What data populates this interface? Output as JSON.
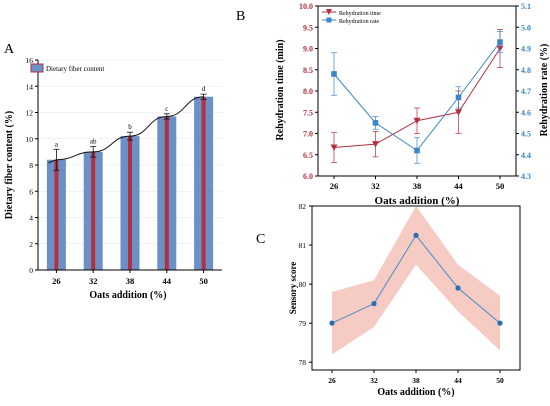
{
  "chart_data": [
    {
      "panel_label": "A",
      "type": "bar",
      "categories": [
        "26",
        "32",
        "38",
        "44",
        "50"
      ],
      "series": [
        {
          "name": "Dietary fiber content",
          "values": [
            8.4,
            9.0,
            10.2,
            11.7,
            13.2
          ],
          "errors": [
            0.8,
            0.4,
            0.3,
            0.2,
            0.2
          ]
        }
      ],
      "letters": [
        "a",
        "ab",
        "b",
        "c",
        "d"
      ],
      "fit_line": true,
      "xlabel": "Oats addition (%)",
      "ylabel": "Dietary fiber content (%)",
      "ylim": [
        0,
        16
      ],
      "yticks": [
        "0",
        "2",
        "4",
        "6",
        "8",
        "10",
        "12",
        "14",
        "16"
      ],
      "legend": "top-left",
      "colors": {
        "bar": "#6b8fc7",
        "stripe": "#b3303f"
      }
    },
    {
      "panel_label": "B",
      "type": "line",
      "x": [
        "26",
        "32",
        "38",
        "44",
        "50"
      ],
      "series": [
        {
          "name": "Rehydration time",
          "axis": "left",
          "values": [
            6.67,
            6.75,
            7.3,
            7.5,
            9.0
          ],
          "errors": [
            0.35,
            0.3,
            0.3,
            0.5,
            0.45
          ],
          "color": "#b3303f",
          "marker": "triangle-down"
        },
        {
          "name": "Rehydration rate",
          "axis": "right",
          "values": [
            4.78,
            4.55,
            4.42,
            4.67,
            4.93
          ],
          "errors": [
            0.1,
            0.03,
            0.06,
            0.05,
            0.05
          ],
          "color": "#3a86c8",
          "marker": "square"
        }
      ],
      "xlabel": "Oats addition (%)",
      "ylabel_left": "Rehydration time (min)",
      "ylabel_right": "Rehydration rate (%)",
      "ylim_left": [
        6.0,
        10.0
      ],
      "ylim_right": [
        4.3,
        5.1
      ],
      "yticks_left": [
        "6.0",
        "6.5",
        "7.0",
        "7.5",
        "8.0",
        "8.5",
        "9.0",
        "9.5",
        "10.0"
      ],
      "yticks_right": [
        "4.3",
        "4.4",
        "4.5",
        "4.6",
        "4.7",
        "4.8",
        "4.9",
        "5.0",
        "5.1"
      ],
      "legend": "top-left"
    },
    {
      "panel_label": "C",
      "type": "line",
      "x": [
        "26",
        "32",
        "38",
        "44",
        "50"
      ],
      "series": [
        {
          "name": "",
          "values": [
            79.0,
            79.5,
            81.25,
            79.9,
            79.0
          ],
          "band_upper": [
            79.8,
            80.1,
            82.0,
            80.5,
            79.7
          ],
          "band_lower": [
            78.2,
            78.9,
            80.5,
            79.3,
            78.3
          ],
          "color": "#3a86c8",
          "band_color": "#f6cbc3"
        }
      ],
      "xlabel": "Oats addition (%)",
      "ylabel": "Sensory score",
      "ylim": [
        77.8,
        82
      ],
      "yticks": [
        "78",
        "79",
        "80",
        "81",
        "82"
      ]
    }
  ]
}
